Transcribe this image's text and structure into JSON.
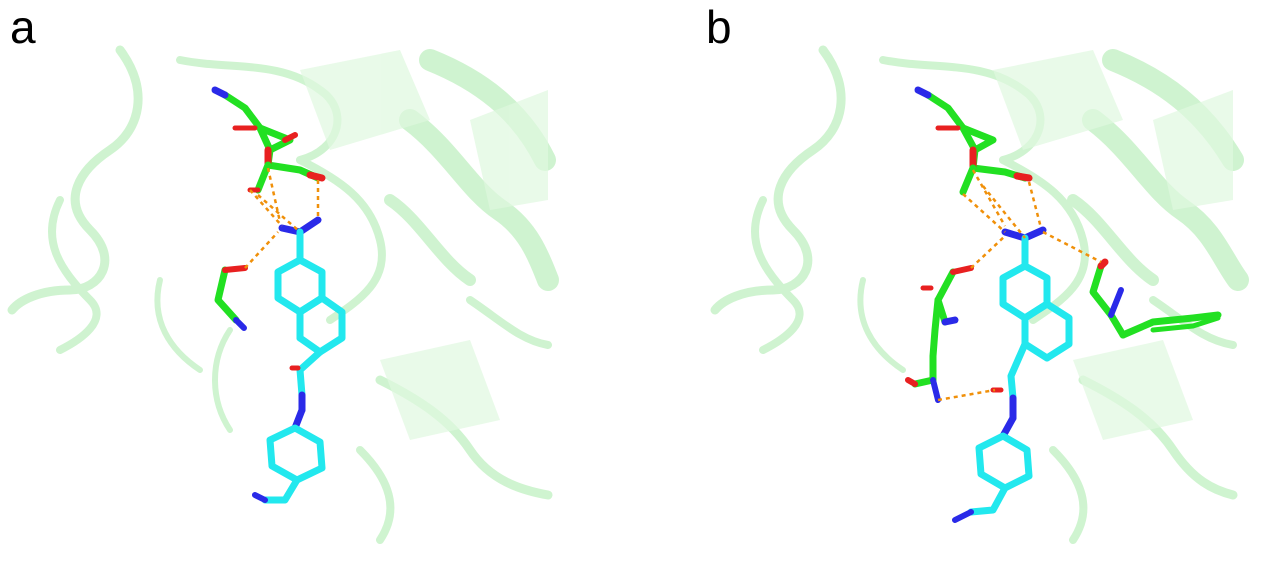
{
  "panels": [
    {
      "label": "a"
    },
    {
      "label": "b"
    }
  ],
  "colors": {
    "background": "#ffffff",
    "protein_cartoon": "#bff0c0",
    "residue_carbon": "#22e022",
    "ligand_carbon": "#22e8ee",
    "nitrogen": "#2a2ae8",
    "oxygen": "#e82020",
    "hydrogen": "#e8e8e8",
    "hbond": "#f0900a"
  },
  "icons": {
    "ligand": "molecule-stick-model",
    "hbond": "dashed-hydrogen-bond"
  }
}
